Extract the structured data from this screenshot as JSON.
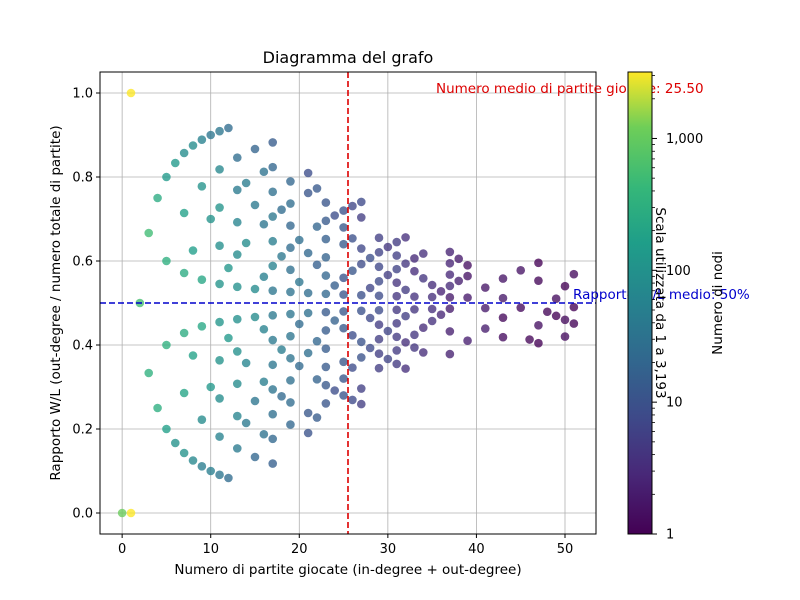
{
  "chart_data": {
    "type": "scatter",
    "title": "Diagramma del grafo",
    "xlabel": "Numero di partite giocate (in-degree + out-degree)",
    "ylabel": "Rapporto W/L (out-degree / numero totale di partite)",
    "xlim": [
      -2.5,
      53.5
    ],
    "ylim": [
      -0.05,
      1.05
    ],
    "x_ticks": [
      0,
      10,
      20,
      30,
      40,
      50
    ],
    "y_ticks": [
      0.0,
      0.2,
      0.4,
      0.6,
      0.8,
      1.0
    ],
    "grid": true,
    "mean_games": {
      "value": 25.5,
      "label": "Numero medio di partite giocate: 25.50",
      "color": "#dd0000"
    },
    "mean_ratio": {
      "value": 0.5,
      "label": "Rapporto W/L medio: 50%",
      "color": "#0000cc"
    },
    "colorbar": {
      "label": "Numero di nodi",
      "side_label": "Scala utilizzata da 1 a 3,193",
      "scale": "log",
      "range": [
        1,
        3193
      ],
      "ticks": [
        1,
        10,
        100,
        1000
      ],
      "tick_labels": [
        "1",
        "10",
        "100",
        "1,000"
      ],
      "colormap": "viridis"
    }
  }
}
